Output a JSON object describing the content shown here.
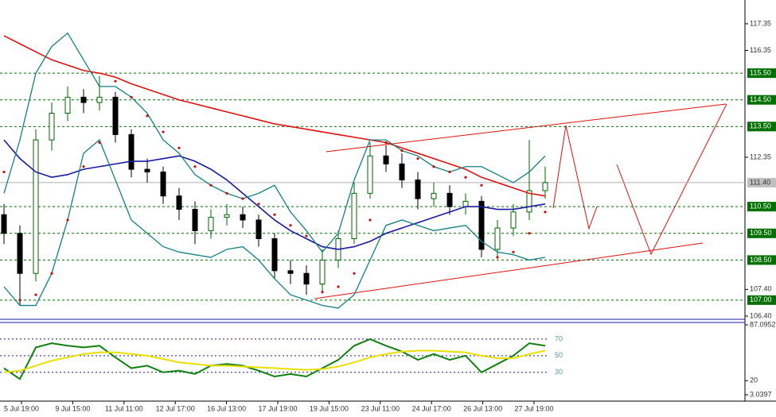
{
  "chart_data": {
    "type": "candlestick",
    "x_labels": [
      "5 Jul 19:00",
      "9 Jul 15:00",
      "11 Jul 11:00",
      "12 Jul 17:00",
      "16 Jul 13:00",
      "17 Jul 19:00",
      "19 Jul 15:00",
      "23 Jul 11:00",
      "24 Jul 17:00",
      "26 Jul 13:00",
      "27 Jul 19:00"
    ],
    "open": [
      110.2,
      109.5,
      108.0,
      113.0,
      114.0,
      114.6,
      114.4,
      114.6,
      113.2,
      111.9,
      111.8,
      110.9,
      110.4,
      109.6,
      110.1,
      110.2,
      110.0,
      109.3,
      108.1,
      108.0,
      107.6,
      108.5,
      109.3,
      111.0,
      112.4,
      112.1,
      111.5,
      110.8,
      111.0,
      110.5,
      110.7,
      108.9,
      109.7,
      110.3,
      111.1
    ],
    "high": [
      110.6,
      109.8,
      113.4,
      114.4,
      115.0,
      114.9,
      115.4,
      114.8,
      113.4,
      112.3,
      112.0,
      111.2,
      110.7,
      110.4,
      110.6,
      110.5,
      110.2,
      109.5,
      108.5,
      108.3,
      108.9,
      109.6,
      111.4,
      112.9,
      112.8,
      112.5,
      111.8,
      111.4,
      111.3,
      111.0,
      110.9,
      110.0,
      110.6,
      113.0,
      112.0
    ],
    "low": [
      109.1,
      106.8,
      107.7,
      112.6,
      113.7,
      114.0,
      114.1,
      112.9,
      111.6,
      111.4,
      110.6,
      110.0,
      109.1,
      109.3,
      109.8,
      109.7,
      109.0,
      107.8,
      107.6,
      107.2,
      107.3,
      108.2,
      109.1,
      110.8,
      111.8,
      111.2,
      110.4,
      110.5,
      110.2,
      110.2,
      108.6,
      108.6,
      109.4,
      110.0,
      110.8
    ],
    "close": [
      109.5,
      108.0,
      113.0,
      114.0,
      114.6,
      114.4,
      114.6,
      113.2,
      111.9,
      111.8,
      110.9,
      110.4,
      109.6,
      110.1,
      110.2,
      110.0,
      109.3,
      108.1,
      108.0,
      107.6,
      108.5,
      109.3,
      111.0,
      112.4,
      112.1,
      111.5,
      110.8,
      111.0,
      110.5,
      110.7,
      108.9,
      109.7,
      110.3,
      111.1,
      111.4
    ],
    "up_color": "#006400",
    "down_color": "#000000",
    "ylim": [
      106.34,
      118.24
    ],
    "yticks": [
      117.35,
      116.35,
      112.35,
      {
        "value": 107.4,
        "label": "107.40"
      },
      {
        "value": 106.4,
        "label": "106.40"
      }
    ],
    "lines": [
      {
        "color": "#e01010",
        "values": [
          116.9,
          116.6,
          116.3,
          116.0,
          115.8,
          115.6,
          115.5,
          115.35,
          115.1,
          114.9,
          114.7,
          114.5,
          114.35,
          114.2,
          114.05,
          113.9,
          113.75,
          113.6,
          113.5,
          113.4,
          113.3,
          113.2,
          113.1,
          113.0,
          112.9,
          112.7,
          112.5,
          112.3,
          112.1,
          111.9,
          111.6,
          111.4,
          111.2,
          111.0,
          110.9
        ]
      },
      {
        "color": "#1a1aa0",
        "values": [
          113.0,
          112.3,
          111.8,
          111.6,
          111.7,
          111.9,
          112.0,
          112.1,
          112.2,
          112.2,
          112.3,
          112.4,
          112.2,
          111.9,
          111.5,
          111.0,
          110.5,
          110.0,
          109.6,
          109.3,
          109.0,
          108.9,
          109.0,
          109.2,
          109.5,
          109.7,
          109.9,
          110.1,
          110.3,
          110.5,
          110.5,
          110.4,
          110.4,
          110.5,
          110.6
        ]
      },
      {
        "color": "#138080",
        "values": [
          111,
          113,
          115.5,
          116.5,
          117.0,
          116.0,
          115.0,
          115.0,
          114.6,
          114.0,
          113.0,
          112.5,
          111.7,
          111.3,
          111.0,
          110.8,
          111.0,
          111.3,
          110.3,
          109.6,
          108.8,
          109.5,
          111.5,
          113.0,
          113.0,
          112.6,
          112.4,
          112.0,
          111.8,
          112.0,
          112.0,
          111.7,
          111.4,
          111.8,
          112.4
        ]
      },
      {
        "color": "#138080",
        "values": [
          107.5,
          106.8,
          106.8,
          108.0,
          110.0,
          112.5,
          113.0,
          111.5,
          110.0,
          109.5,
          109.0,
          108.8,
          108.7,
          108.6,
          108.9,
          109.0,
          108.5,
          107.8,
          107.2,
          107.0,
          106.8,
          106.7,
          107.2,
          108.5,
          109.8,
          110.0,
          109.8,
          109.6,
          109.7,
          109.8,
          109.2,
          108.8,
          108.7,
          108.5,
          108.6
        ]
      }
    ],
    "sar": {
      "color": "#c01010",
      "values": [
        111.8,
        107.0,
        107.2,
        108.0,
        110.0,
        112.0,
        112.9,
        115.2,
        114.6,
        113.9,
        113.3,
        112.7,
        112.0,
        111.3,
        111.0,
        110.8,
        110.6,
        110.2,
        109.8,
        109.4,
        107.3,
        107.5,
        108.0,
        110.0,
        112.9,
        112.6,
        112.3,
        112.0,
        111.8,
        111.6,
        111.3,
        108.6,
        108.8,
        109.5,
        110.3
      ]
    },
    "levels": [
      {
        "value": 115.5,
        "label": "115.50"
      },
      {
        "value": 114.5,
        "label": "114.50"
      },
      {
        "value": 113.5,
        "label": "113.50"
      },
      {
        "value": 110.5,
        "label": "110.50"
      },
      {
        "value": 109.5,
        "label": "109.50"
      },
      {
        "value": 108.5,
        "label": "108.50"
      },
      {
        "value": 107.0,
        "label": "107.00"
      }
    ],
    "level_color": "#007000",
    "last": {
      "value": 111.4,
      "label": "111.40"
    },
    "oscillator": {
      "ylim": [
        3.0397,
        87.0952
      ],
      "yticks": [
        87.0952,
        20,
        3.0397
      ],
      "levels": [
        70,
        50,
        30
      ],
      "lines": [
        {
          "color": "#108010",
          "values": [
            35,
            22,
            60,
            65,
            62,
            60,
            62,
            48,
            35,
            38,
            30,
            32,
            28,
            38,
            40,
            38,
            32,
            25,
            28,
            25,
            35,
            45,
            62,
            70,
            62,
            55,
            45,
            52,
            45,
            50,
            30,
            40,
            50,
            65,
            62
          ]
        },
        {
          "color": "#e8e000",
          "values": [
            30,
            32,
            38,
            44,
            48,
            52,
            54,
            54,
            52,
            50,
            46,
            42,
            40,
            38,
            38,
            37,
            36,
            35,
            34,
            33,
            34,
            37,
            42,
            48,
            52,
            55,
            56,
            56,
            55,
            54,
            50,
            47,
            47,
            52,
            56
          ]
        }
      ]
    }
  }
}
